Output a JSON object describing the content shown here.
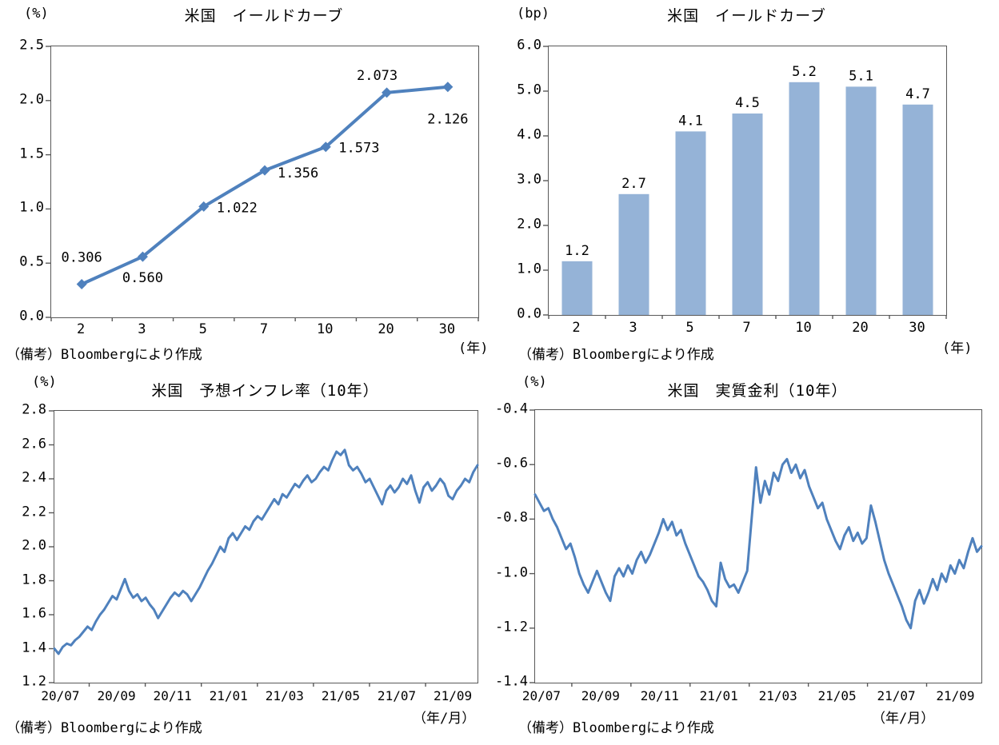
{
  "source_note": "（備考）Bloombergにより作成",
  "colors": {
    "line_blue": "#4F81BD",
    "bar_blue": "#95B3D7",
    "axis_gray": "#595959"
  },
  "chart_data": [
    {
      "type": "line",
      "title": "米国　イールドカーブ",
      "unit": "(%)",
      "xlabel": "(年)",
      "footnote": "（備考）Bloombergにより作成",
      "categories": [
        "2",
        "3",
        "5",
        "7",
        "10",
        "20",
        "30"
      ],
      "values": [
        0.306,
        0.56,
        1.022,
        1.356,
        1.573,
        2.073,
        2.126
      ],
      "data_labels": [
        "0.306",
        "0.560",
        "1.022",
        "1.356",
        "1.573",
        "2.073",
        "2.126"
      ],
      "y_ticks": [
        "2.5",
        "2.0",
        "1.5",
        "1.0",
        "0.5",
        "0.0"
      ],
      "ylim": [
        0,
        2.5
      ],
      "xlim_note": "category axis, maturities in years",
      "grid": false,
      "legend": "none",
      "color": "#4F81BD"
    },
    {
      "type": "bar",
      "title": "米国　イールドカーブ",
      "unit": "(bp)",
      "xlabel": "(年)",
      "footnote": "（備考）Bloombergにより作成",
      "categories": [
        "2",
        "3",
        "5",
        "7",
        "10",
        "20",
        "30"
      ],
      "values": [
        1.2,
        2.7,
        4.1,
        4.5,
        5.2,
        5.1,
        4.7
      ],
      "data_labels": [
        "1.2",
        "2.7",
        "4.1",
        "4.5",
        "5.2",
        "5.1",
        "4.7"
      ],
      "y_ticks": [
        "6.0",
        "5.0",
        "4.0",
        "3.0",
        "2.0",
        "1.0",
        "0.0"
      ],
      "ylim": [
        0,
        6
      ],
      "grid": false,
      "legend": "none",
      "color": "#95B3D7"
    },
    {
      "type": "line",
      "title": "米国　予想インフレ率（10年）",
      "unit": "(%)",
      "xlabel": "（年/月）",
      "footnote": "（備考）Bloombergにより作成",
      "x_ticks": [
        "20/07",
        "20/09",
        "20/11",
        "21/01",
        "21/03",
        "21/05",
        "21/07",
        "21/09"
      ],
      "x_range_note": "daily series, 2020/07 to 2021/10",
      "values": [
        1.4,
        1.37,
        1.41,
        1.43,
        1.42,
        1.45,
        1.47,
        1.5,
        1.53,
        1.51,
        1.56,
        1.6,
        1.63,
        1.67,
        1.71,
        1.69,
        1.75,
        1.81,
        1.74,
        1.7,
        1.72,
        1.68,
        1.7,
        1.66,
        1.63,
        1.58,
        1.62,
        1.66,
        1.7,
        1.73,
        1.71,
        1.74,
        1.72,
        1.68,
        1.72,
        1.76,
        1.81,
        1.86,
        1.9,
        1.95,
        2.0,
        1.97,
        2.05,
        2.08,
        2.04,
        2.08,
        2.12,
        2.1,
        2.15,
        2.18,
        2.16,
        2.2,
        2.24,
        2.28,
        2.25,
        2.31,
        2.29,
        2.33,
        2.37,
        2.35,
        2.39,
        2.42,
        2.38,
        2.4,
        2.44,
        2.47,
        2.45,
        2.51,
        2.56,
        2.54,
        2.57,
        2.48,
        2.45,
        2.47,
        2.43,
        2.38,
        2.4,
        2.35,
        2.3,
        2.25,
        2.33,
        2.36,
        2.32,
        2.35,
        2.4,
        2.37,
        2.42,
        2.33,
        2.26,
        2.35,
        2.38,
        2.33,
        2.36,
        2.4,
        2.37,
        2.3,
        2.28,
        2.33,
        2.36,
        2.4,
        2.38,
        2.44,
        2.48
      ],
      "y_ticks": [
        "2.8",
        "2.6",
        "2.4",
        "2.2",
        "2.0",
        "1.8",
        "1.6",
        "1.4",
        "1.2"
      ],
      "ylim": [
        1.2,
        2.8
      ],
      "grid": false,
      "legend": "none",
      "color": "#4F81BD"
    },
    {
      "type": "line",
      "title": "米国　実質金利（10年）",
      "unit": "(%)",
      "xlabel": "（年/月）",
      "footnote": "（備考）Bloombergにより作成",
      "x_ticks": [
        "20/07",
        "20/09",
        "20/11",
        "21/01",
        "21/03",
        "21/05",
        "21/07",
        "21/09"
      ],
      "x_range_note": "daily series, 2020/07 to 2021/10",
      "values": [
        -0.71,
        -0.74,
        -0.77,
        -0.76,
        -0.8,
        -0.83,
        -0.87,
        -0.91,
        -0.89,
        -0.94,
        -1.0,
        -1.04,
        -1.07,
        -1.03,
        -0.99,
        -1.03,
        -1.07,
        -1.1,
        -1.01,
        -0.98,
        -1.01,
        -0.97,
        -1.0,
        -0.95,
        -0.92,
        -0.96,
        -0.93,
        -0.89,
        -0.85,
        -0.8,
        -0.84,
        -0.81,
        -0.86,
        -0.84,
        -0.89,
        -0.93,
        -0.97,
        -1.01,
        -1.03,
        -1.06,
        -1.1,
        -1.12,
        -0.96,
        -1.02,
        -1.05,
        -1.04,
        -1.07,
        -1.03,
        -0.99,
        -0.8,
        -0.61,
        -0.74,
        -0.66,
        -0.71,
        -0.63,
        -0.66,
        -0.6,
        -0.58,
        -0.63,
        -0.6,
        -0.65,
        -0.62,
        -0.68,
        -0.72,
        -0.76,
        -0.74,
        -0.8,
        -0.84,
        -0.88,
        -0.91,
        -0.86,
        -0.83,
        -0.88,
        -0.85,
        -0.89,
        -0.87,
        -0.75,
        -0.81,
        -0.88,
        -0.95,
        -1.0,
        -1.04,
        -1.08,
        -1.12,
        -1.17,
        -1.2,
        -1.1,
        -1.06,
        -1.11,
        -1.07,
        -1.02,
        -1.06,
        -1.0,
        -1.03,
        -0.97,
        -1.0,
        -0.95,
        -0.98,
        -0.92,
        -0.87,
        -0.92,
        -0.9
      ],
      "y_ticks": [
        "-0.4",
        "-0.6",
        "-0.8",
        "-1.0",
        "-1.2",
        "-1.4"
      ],
      "ylim": [
        -1.4,
        -0.4
      ],
      "grid": false,
      "legend": "none",
      "color": "#4F81BD"
    }
  ]
}
